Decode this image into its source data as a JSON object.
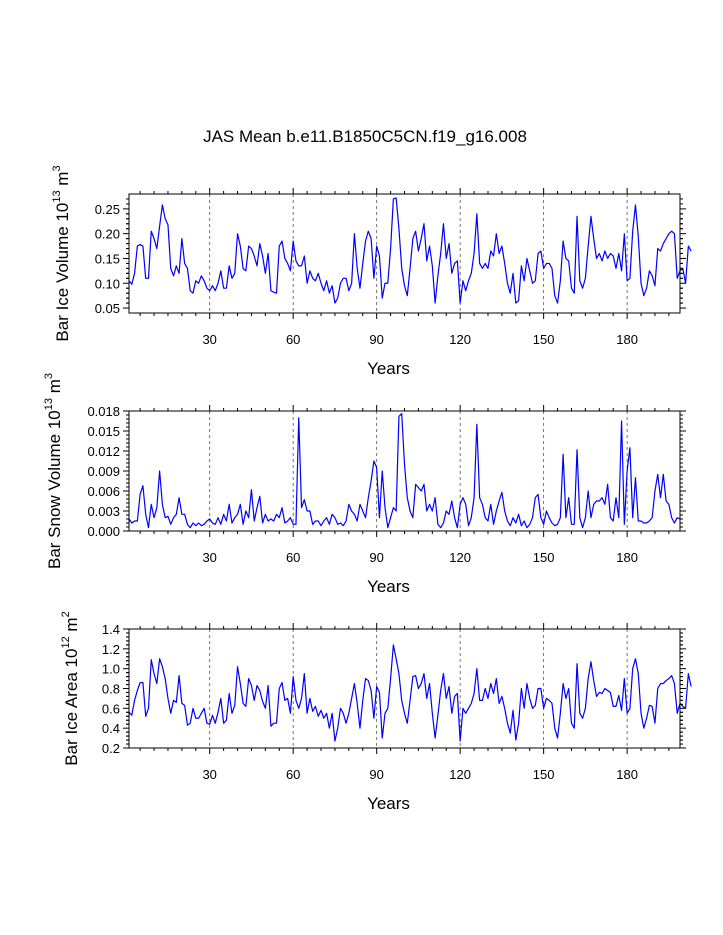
{
  "title": "JAS Mean b.e11.B1850C5CN.f19_g16.008",
  "colors": {
    "line": "#0000ff",
    "axis": "#000000",
    "refline": "#555555"
  },
  "chart_data": [
    {
      "type": "line",
      "xlabel": "Years",
      "ylabel_main": "Bar Ice Volume 10",
      "ylabel_exp": "13",
      "ylabel_unit": " m",
      "ylabel_unit_exp": "3",
      "xlim": [
        1,
        199
      ],
      "ylim": [
        0.04,
        0.28
      ],
      "xticks": [
        30,
        60,
        90,
        120,
        150,
        180
      ],
      "yticks": [
        0.05,
        0.1,
        0.15,
        0.2,
        0.25
      ],
      "ytick_labels": [
        "0.05",
        "0.10",
        "0.15",
        "0.20",
        "0.25"
      ],
      "ref_lines_x": [
        30,
        60,
        90,
        120,
        150,
        180
      ],
      "x_start": 1,
      "values": [
        0.105,
        0.098,
        0.12,
        0.175,
        0.178,
        0.175,
        0.11,
        0.11,
        0.205,
        0.19,
        0.17,
        0.215,
        0.258,
        0.23,
        0.218,
        0.13,
        0.115,
        0.135,
        0.12,
        0.19,
        0.14,
        0.13,
        0.085,
        0.08,
        0.105,
        0.1,
        0.115,
        0.105,
        0.09,
        0.085,
        0.095,
        0.085,
        0.1,
        0.125,
        0.09,
        0.09,
        0.135,
        0.11,
        0.12,
        0.2,
        0.175,
        0.13,
        0.125,
        0.175,
        0.17,
        0.155,
        0.135,
        0.18,
        0.155,
        0.12,
        0.16,
        0.085,
        0.082,
        0.08,
        0.175,
        0.185,
        0.15,
        0.14,
        0.125,
        0.185,
        0.145,
        0.135,
        0.135,
        0.155,
        0.1,
        0.125,
        0.11,
        0.105,
        0.12,
        0.1,
        0.085,
        0.105,
        0.08,
        0.095,
        0.06,
        0.07,
        0.1,
        0.11,
        0.11,
        0.085,
        0.1,
        0.2,
        0.13,
        0.09,
        0.14,
        0.185,
        0.205,
        0.19,
        0.11,
        0.175,
        0.155,
        0.07,
        0.1,
        0.1,
        0.17,
        0.27,
        0.272,
        0.21,
        0.13,
        0.095,
        0.075,
        0.13,
        0.19,
        0.205,
        0.165,
        0.19,
        0.22,
        0.145,
        0.175,
        0.135,
        0.06,
        0.115,
        0.16,
        0.22,
        0.15,
        0.18,
        0.12,
        0.14,
        0.145,
        0.06,
        0.105,
        0.085,
        0.105,
        0.12,
        0.16,
        0.24,
        0.14,
        0.13,
        0.14,
        0.13,
        0.165,
        0.155,
        0.2,
        0.16,
        0.175,
        0.14,
        0.1,
        0.08,
        0.12,
        0.06,
        0.065,
        0.135,
        0.105,
        0.15,
        0.125,
        0.1,
        0.105,
        0.16,
        0.165,
        0.13,
        0.14,
        0.14,
        0.13,
        0.075,
        0.06,
        0.105,
        0.185,
        0.15,
        0.145,
        0.09,
        0.08,
        0.235,
        0.105,
        0.09,
        0.11,
        0.175,
        0.235,
        0.19,
        0.15,
        0.16,
        0.145,
        0.165,
        0.15,
        0.16,
        0.155,
        0.13,
        0.16,
        0.125,
        0.2,
        0.105,
        0.11,
        0.205,
        0.258,
        0.195,
        0.1,
        0.075,
        0.09,
        0.125,
        0.115,
        0.095,
        0.17,
        0.165,
        0.18,
        0.19,
        0.2,
        0.205,
        0.2,
        0.11,
        0.125,
        0.13,
        0.1,
        0.175,
        0.165
      ]
    },
    {
      "type": "line",
      "xlabel": "Years",
      "ylabel_main": "Bar Snow Volume 10",
      "ylabel_exp": "13",
      "ylabel_unit": " m",
      "ylabel_unit_exp": "3",
      "xlim": [
        1,
        199
      ],
      "ylim": [
        0.0,
        0.018
      ],
      "xticks": [
        30,
        60,
        90,
        120,
        150,
        180
      ],
      "yticks": [
        0.0,
        0.003,
        0.006,
        0.009,
        0.012,
        0.015,
        0.018
      ],
      "ytick_labels": [
        "0.000",
        "0.003",
        "0.006",
        "0.009",
        "0.012",
        "0.015",
        "0.018"
      ],
      "ref_lines_x": [
        30,
        60,
        90,
        120,
        150,
        180
      ],
      "x_start": 1,
      "values": [
        0.0018,
        0.0012,
        0.0015,
        0.0015,
        0.0055,
        0.0068,
        0.0025,
        0.0005,
        0.004,
        0.002,
        0.0035,
        0.009,
        0.004,
        0.002,
        0.0022,
        0.001,
        0.002,
        0.0025,
        0.005,
        0.0025,
        0.0025,
        0.001,
        0.0005,
        0.0012,
        0.0008,
        0.0012,
        0.0008,
        0.001,
        0.0015,
        0.0018,
        0.0012,
        0.001,
        0.002,
        0.001,
        0.0025,
        0.0015,
        0.004,
        0.0012,
        0.002,
        0.0025,
        0.004,
        0.001,
        0.003,
        0.002,
        0.0062,
        0.0015,
        0.0035,
        0.0052,
        0.0012,
        0.0025,
        0.0015,
        0.0018,
        0.0015,
        0.0025,
        0.002,
        0.0035,
        0.0012,
        0.0015,
        0.002,
        0.001,
        0.001,
        0.017,
        0.0035,
        0.0047,
        0.003,
        0.003,
        0.001,
        0.0015,
        0.0015,
        0.0008,
        0.0015,
        0.002,
        0.001,
        0.0025,
        0.002,
        0.001,
        0.0012,
        0.0008,
        0.0015,
        0.004,
        0.003,
        0.0025,
        0.0015,
        0.004,
        0.003,
        0.002,
        0.005,
        0.0075,
        0.0105,
        0.0095,
        0.002,
        0.009,
        0.0035,
        0.0005,
        0.002,
        0.0035,
        0.003,
        0.0172,
        0.0176,
        0.01,
        0.005,
        0.003,
        0.002,
        0.007,
        0.0065,
        0.006,
        0.007,
        0.003,
        0.004,
        0.003,
        0.005,
        0.001,
        0.0005,
        0.0012,
        0.003,
        0.0025,
        0.0045,
        0.002,
        0.0005,
        0.004,
        0.005,
        0.004,
        0.0008,
        0.002,
        0.005,
        0.016,
        0.005,
        0.004,
        0.002,
        0.0015,
        0.004,
        0.001,
        0.003,
        0.0045,
        0.0058,
        0.003,
        0.0015,
        0.0008,
        0.002,
        0.0012,
        0.0025,
        0.0008,
        0.0015,
        0.0005,
        0.001,
        0.002,
        0.005,
        0.0055,
        0.002,
        0.001,
        0.003,
        0.002,
        0.0012,
        0.0008,
        0.001,
        0.002,
        0.0115,
        0.002,
        0.005,
        0.001,
        0.001,
        0.0122,
        0.002,
        0.0005,
        0.002,
        0.006,
        0.002,
        0.004,
        0.0045,
        0.0045,
        0.005,
        0.004,
        0.007,
        0.002,
        0.0015,
        0.005,
        0.002,
        0.0165,
        0.001,
        0.009,
        0.0125,
        0.002,
        0.008,
        0.0015,
        0.0015,
        0.0012,
        0.0012,
        0.0015,
        0.002,
        0.006,
        0.0085,
        0.005,
        0.0085,
        0.0045,
        0.004,
        0.002,
        0.0012,
        0.002,
        0.0018
      ]
    },
    {
      "type": "line",
      "xlabel": "Years",
      "ylabel_main": "Bar Ice Area 10",
      "ylabel_exp": "12",
      "ylabel_unit": " m",
      "ylabel_unit_exp": "2",
      "xlim": [
        1,
        199
      ],
      "ylim": [
        0.2,
        1.4
      ],
      "xticks": [
        30,
        60,
        90,
        120,
        150,
        180
      ],
      "yticks": [
        0.2,
        0.4,
        0.6,
        0.8,
        1.0,
        1.2,
        1.4
      ],
      "ytick_labels": [
        "0.2",
        "0.4",
        "0.6",
        "0.8",
        "1.0",
        "1.2",
        "1.4"
      ],
      "ref_lines_x": [
        30,
        60,
        90,
        120,
        150,
        180
      ],
      "x_start": 1,
      "values": [
        0.56,
        0.53,
        0.68,
        0.78,
        0.86,
        0.86,
        0.52,
        0.6,
        1.09,
        0.95,
        0.85,
        1.1,
        1.02,
        0.9,
        0.7,
        0.55,
        0.68,
        0.66,
        0.93,
        0.65,
        0.63,
        0.43,
        0.45,
        0.6,
        0.5,
        0.5,
        0.55,
        0.6,
        0.45,
        0.44,
        0.53,
        0.45,
        0.56,
        0.7,
        0.45,
        0.48,
        0.75,
        0.55,
        0.63,
        1.02,
        0.85,
        0.65,
        0.62,
        0.9,
        0.83,
        0.68,
        0.83,
        0.78,
        0.67,
        0.6,
        0.83,
        0.42,
        0.45,
        0.45,
        0.8,
        0.86,
        0.68,
        0.7,
        0.55,
        0.92,
        0.68,
        0.6,
        0.7,
        0.95,
        0.55,
        0.7,
        0.57,
        0.62,
        0.52,
        0.58,
        0.5,
        0.55,
        0.4,
        0.55,
        0.27,
        0.4,
        0.6,
        0.55,
        0.45,
        0.55,
        0.7,
        0.85,
        0.65,
        0.4,
        0.68,
        0.9,
        0.88,
        0.78,
        0.5,
        0.82,
        0.76,
        0.3,
        0.55,
        0.6,
        0.9,
        1.24,
        1.1,
        0.95,
        0.68,
        0.55,
        0.45,
        0.68,
        0.92,
        0.93,
        0.8,
        0.85,
        0.95,
        0.7,
        0.85,
        0.55,
        0.3,
        0.53,
        0.78,
        0.95,
        0.7,
        0.82,
        0.55,
        0.72,
        0.75,
        0.27,
        0.6,
        0.55,
        0.6,
        0.65,
        0.75,
        1.0,
        0.68,
        0.68,
        0.8,
        0.7,
        0.85,
        0.75,
        0.9,
        0.65,
        0.72,
        0.6,
        0.45,
        0.35,
        0.58,
        0.28,
        0.45,
        0.8,
        0.6,
        0.85,
        0.7,
        0.6,
        0.63,
        0.8,
        0.8,
        0.6,
        0.7,
        0.68,
        0.65,
        0.4,
        0.3,
        0.55,
        0.85,
        0.7,
        0.8,
        0.45,
        0.4,
        1.05,
        0.55,
        0.5,
        0.6,
        0.9,
        1.07,
        0.88,
        0.72,
        0.76,
        0.75,
        0.8,
        0.78,
        0.76,
        0.62,
        0.62,
        0.73,
        0.58,
        0.9,
        0.55,
        0.6,
        1.0,
        1.1,
        0.95,
        0.55,
        0.4,
        0.5,
        0.63,
        0.62,
        0.45,
        0.8,
        0.85,
        0.85,
        0.88,
        0.9,
        0.93,
        0.85,
        0.55,
        0.65,
        0.62,
        0.6,
        0.95,
        0.82
      ]
    }
  ]
}
